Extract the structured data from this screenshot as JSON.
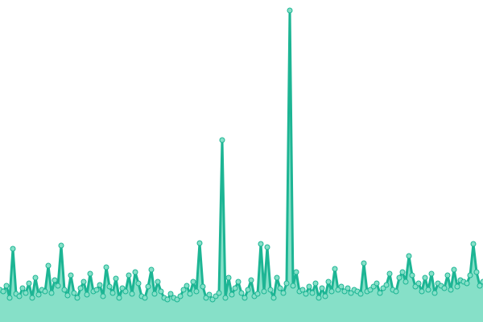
{
  "chart_data": {
    "type": "area",
    "color": "#1db594",
    "fill": "#86e0c8",
    "values": [
      40,
      38,
      45,
      30,
      91,
      35,
      32,
      42,
      36,
      48,
      30,
      55,
      34,
      40,
      38,
      70,
      36,
      52,
      45,
      95,
      40,
      33,
      58,
      36,
      30,
      42,
      50,
      34,
      60,
      38,
      40,
      46,
      32,
      68,
      44,
      36,
      54,
      30,
      42,
      38,
      58,
      35,
      62,
      48,
      32,
      30,
      44,
      65,
      35,
      50,
      38,
      30,
      28,
      35,
      30,
      28,
      32,
      40,
      45,
      35,
      50,
      38,
      98,
      44,
      30,
      34,
      28,
      32,
      36,
      226,
      30,
      55,
      34,
      42,
      50,
      36,
      30,
      40,
      52,
      32,
      35,
      97,
      38,
      93,
      40,
      30,
      55,
      42,
      36,
      48,
      387,
      45,
      62,
      38,
      40,
      35,
      44,
      36,
      48,
      30,
      42,
      32,
      50,
      38,
      66,
      40,
      44,
      38,
      42,
      36,
      40,
      38,
      35,
      73,
      38,
      40,
      44,
      48,
      36,
      42,
      46,
      60,
      40,
      38,
      55,
      62,
      50,
      82,
      58,
      44,
      48,
      38,
      55,
      40,
      60,
      36,
      48,
      45,
      42,
      58,
      40,
      65,
      44,
      52,
      50,
      48,
      58,
      97,
      62,
      45,
      50
    ],
    "ylim": [
      0,
      400
    ]
  }
}
